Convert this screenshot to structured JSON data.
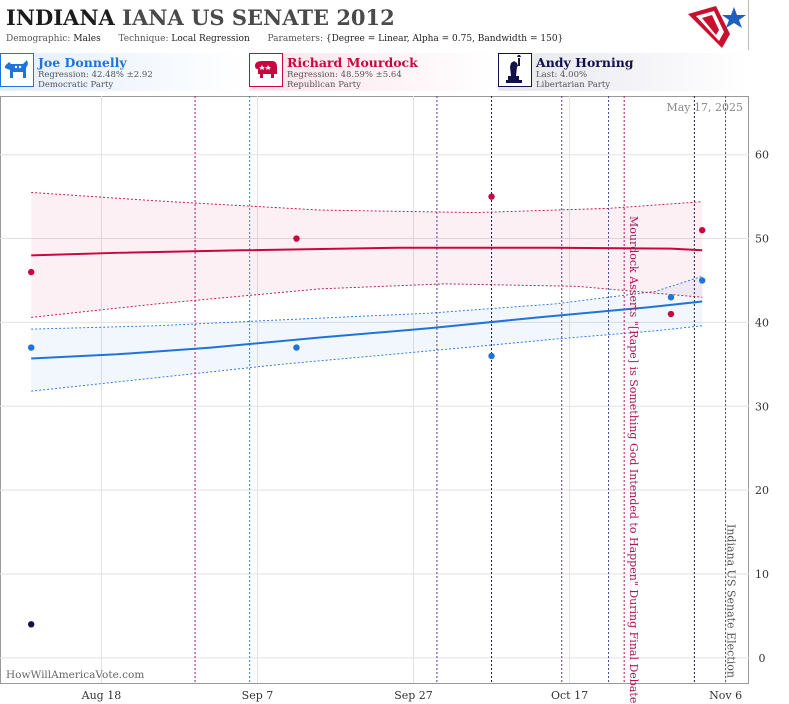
{
  "header": {
    "state": "INDIANA",
    "race": "IANA US SENATE 2012",
    "params": {
      "demographic_label": "Demographic:",
      "demographic_value": "Males",
      "technique_label": "Technique:",
      "technique_value": "Local Regression",
      "parameters_label": "Parameters:",
      "parameters_value": "{Degree = Linear, Alpha = 0.75, Bandwidth = 150}"
    }
  },
  "candidates": [
    {
      "name": "Joe Donnelly",
      "stat": "Regression: 42.48% ±2.92",
      "party": "Democratic Party",
      "color": "#1f74d9",
      "icon": "donkey-icon"
    },
    {
      "name": "Richard Mourdock",
      "stat": "Regression: 48.59% ±5.64",
      "party": "Republican Party",
      "color": "#c8073f",
      "icon": "elephant-icon"
    },
    {
      "name": "Andy Horning",
      "stat": "Last: 4.00%",
      "party": "Libertarian Party",
      "color": "#12114a",
      "icon": "liberty-statue-icon"
    }
  ],
  "chart_data": {
    "type": "scatter",
    "date_label": "May 17, 2025",
    "watermark": "HowWillAmericaVote.com",
    "x_ticks": [
      "Aug 18",
      "Sep 7",
      "Sep 27",
      "Oct 17",
      "Nov 6"
    ],
    "x_range": [
      "2012-08-05",
      "2012-11-09"
    ],
    "y_ticks": [
      0,
      10,
      20,
      30,
      40,
      50,
      60
    ],
    "ylim": [
      -3,
      67
    ],
    "series": [
      {
        "name": "Joe Donnelly",
        "color": "#1f74d9",
        "points": [
          {
            "x": "2012-08-09",
            "y": 37
          },
          {
            "x": "2012-09-12",
            "y": 37
          },
          {
            "x": "2012-10-07",
            "y": 36
          },
          {
            "x": "2012-10-30",
            "y": 43
          },
          {
            "x": "2012-11-03",
            "y": 45
          }
        ],
        "fit": [
          {
            "x": "2012-08-09",
            "y": 35.7
          },
          {
            "x": "2012-08-20",
            "y": 36.2
          },
          {
            "x": "2012-09-01",
            "y": 37.0
          },
          {
            "x": "2012-09-15",
            "y": 38.2
          },
          {
            "x": "2012-09-29",
            "y": 39.3
          },
          {
            "x": "2012-10-13",
            "y": 40.6
          },
          {
            "x": "2012-10-27",
            "y": 41.8
          },
          {
            "x": "2012-11-03",
            "y": 42.5
          }
        ],
        "band_upper": [
          {
            "x": "2012-08-09",
            "y": 39.2
          },
          {
            "x": "2012-08-25",
            "y": 39.6
          },
          {
            "x": "2012-09-10",
            "y": 40.3
          },
          {
            "x": "2012-09-29",
            "y": 41.1
          },
          {
            "x": "2012-10-15",
            "y": 42.2
          },
          {
            "x": "2012-10-28",
            "y": 43.7
          },
          {
            "x": "2012-11-03",
            "y": 45.5
          }
        ],
        "band_lower": [
          {
            "x": "2012-08-09",
            "y": 31.8
          },
          {
            "x": "2012-08-25",
            "y": 33.4
          },
          {
            "x": "2012-09-10",
            "y": 35.0
          },
          {
            "x": "2012-09-29",
            "y": 36.6
          },
          {
            "x": "2012-10-15",
            "y": 38.0
          },
          {
            "x": "2012-10-28",
            "y": 39.0
          },
          {
            "x": "2012-11-03",
            "y": 39.6
          }
        ]
      },
      {
        "name": "Richard Mourdock",
        "color": "#c8073f",
        "points": [
          {
            "x": "2012-08-09",
            "y": 46
          },
          {
            "x": "2012-09-12",
            "y": 50
          },
          {
            "x": "2012-10-07",
            "y": 55
          },
          {
            "x": "2012-10-30",
            "y": 41
          },
          {
            "x": "2012-11-03",
            "y": 51
          }
        ],
        "fit": [
          {
            "x": "2012-08-09",
            "y": 48.0
          },
          {
            "x": "2012-08-20",
            "y": 48.3
          },
          {
            "x": "2012-09-05",
            "y": 48.6
          },
          {
            "x": "2012-09-25",
            "y": 48.9
          },
          {
            "x": "2012-10-15",
            "y": 48.9
          },
          {
            "x": "2012-10-30",
            "y": 48.8
          },
          {
            "x": "2012-11-03",
            "y": 48.6
          }
        ],
        "band_upper": [
          {
            "x": "2012-08-09",
            "y": 55.5
          },
          {
            "x": "2012-08-25",
            "y": 54.5
          },
          {
            "x": "2012-09-15",
            "y": 53.4
          },
          {
            "x": "2012-10-05",
            "y": 53.1
          },
          {
            "x": "2012-10-22",
            "y": 53.6
          },
          {
            "x": "2012-11-03",
            "y": 54.4
          }
        ],
        "band_lower": [
          {
            "x": "2012-08-09",
            "y": 40.6
          },
          {
            "x": "2012-08-25",
            "y": 42.2
          },
          {
            "x": "2012-09-15",
            "y": 44.0
          },
          {
            "x": "2012-10-01",
            "y": 44.6
          },
          {
            "x": "2012-10-18",
            "y": 44.3
          },
          {
            "x": "2012-11-03",
            "y": 43.0
          }
        ]
      },
      {
        "name": "Andy Horning",
        "color": "#12114a",
        "points": [
          {
            "x": "2012-08-09",
            "y": 4
          }
        ]
      }
    ],
    "vlines": [
      {
        "x": "2012-08-30",
        "color": "#b0145a"
      },
      {
        "x": "2012-09-06",
        "color": "#3a7bd5"
      },
      {
        "x": "2012-09-30",
        "color": "#5a3a7a"
      },
      {
        "x": "2012-10-07",
        "color": "#1a1a4a"
      },
      {
        "x": "2012-10-16",
        "color": "#5a3a7a"
      },
      {
        "x": "2012-10-22",
        "color": "#3a4a9a"
      },
      {
        "x": "2012-10-24",
        "color": "#b0145a"
      },
      {
        "x": "2012-11-02",
        "color": "#1a1a4a"
      },
      {
        "x": "2012-11-06",
        "color": "#555555"
      }
    ],
    "annotations": [
      {
        "x": "2012-10-24",
        "text": "Mourdock Asserts \"[Rape] is Something God Intended to Happen\" During Final Debate",
        "color": "#b0145a"
      },
      {
        "x": "2012-11-06",
        "text": "Indiana US Senate Election",
        "color": "#555555"
      }
    ]
  }
}
